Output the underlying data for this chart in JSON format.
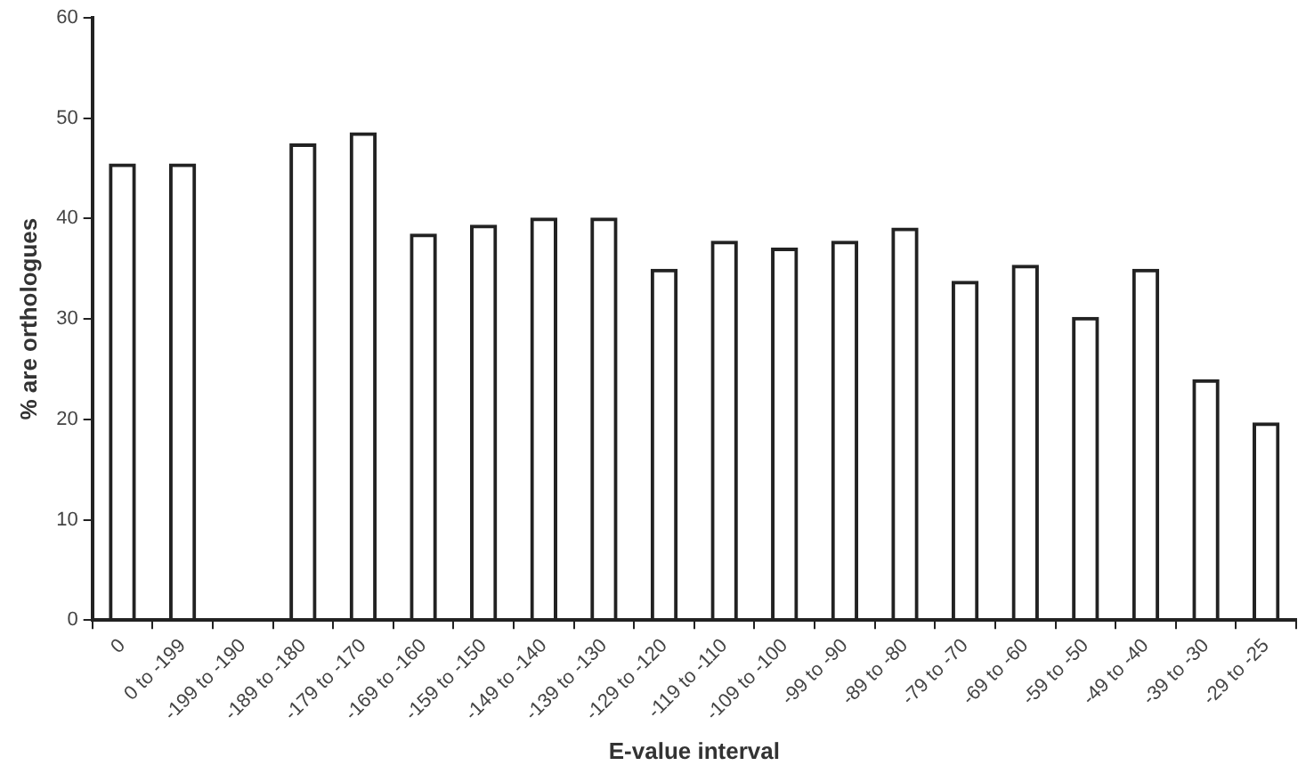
{
  "chart_data": {
    "type": "bar",
    "xlabel": "E-value interval",
    "ylabel": "% are orthologues",
    "categories": [
      "0",
      "0 to -199",
      "-199 to -190",
      "-189 to -180",
      "-179 to -170",
      "-169 to -160",
      "-159 to -150",
      "-149 to -140",
      "-139 to -130",
      "-129 to -120",
      "-119 to -110",
      "-109 to -100",
      "-99 to -90",
      "-89 to -80",
      "-79 to -70",
      "-69 to -60",
      "-59 to -50",
      "-49 to -40",
      "-39 to -30",
      "-29 to -25"
    ],
    "values": [
      45.5,
      45.5,
      null,
      47.5,
      48.6,
      38.5,
      39.4,
      40.1,
      40.1,
      35,
      37.8,
      37.1,
      37.8,
      39.1,
      33.8,
      35.4,
      30.2,
      35,
      24,
      19.7
    ],
    "color": "#222222",
    "ylim": [
      0,
      60
    ],
    "yticks": [
      0,
      10,
      20,
      30,
      40,
      50,
      60
    ],
    "grid": false,
    "legend": false
  }
}
